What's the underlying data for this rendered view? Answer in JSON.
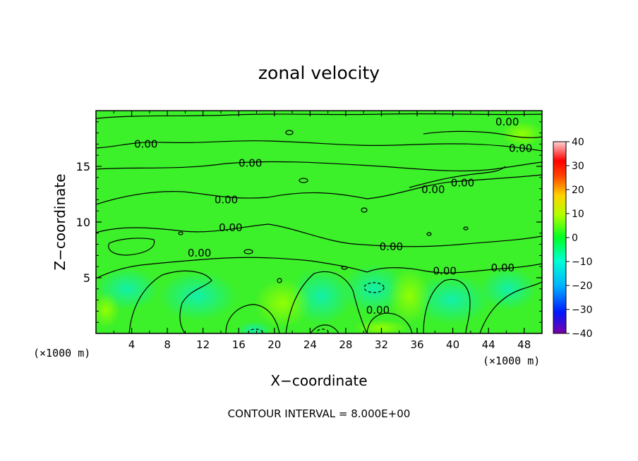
{
  "chart_data": {
    "type": "heatmap",
    "title": "zonal velocity",
    "xlabel": "X−coordinate",
    "ylabel": "Z−coordinate",
    "x_unit_left": "(×1000 m)",
    "x_unit_right": "(×1000 m)",
    "xlim": [
      0,
      50
    ],
    "ylim": [
      0,
      20
    ],
    "x_ticks": [
      4,
      8,
      12,
      16,
      20,
      24,
      28,
      32,
      36,
      40,
      44,
      48
    ],
    "x_tick_labels": [
      "4",
      "8",
      "12",
      "16",
      "20",
      "24",
      "28",
      "32",
      "36",
      "40",
      "44",
      "48"
    ],
    "y_ticks": [
      5,
      10,
      15
    ],
    "y_tick_labels": [
      "5",
      "10",
      "15"
    ],
    "colorbar": {
      "range": [
        -40,
        40
      ],
      "ticks": [
        40,
        30,
        20,
        10,
        0,
        -10,
        -20,
        -30,
        -40
      ],
      "tick_labels": [
        "40",
        "30",
        "20",
        "10",
        "0",
        "−10",
        "−20",
        "−30",
        "−40"
      ],
      "colormap": [
        "#7a00a8",
        "#0018ff",
        "#00b4ff",
        "#00ffd2",
        "#00ff24",
        "#b4ff00",
        "#ffd200",
        "#ff4600",
        "#ff0000",
        "#ffd2d2"
      ]
    },
    "contour_labels": [
      {
        "text": "0.00",
        "x": 5.6,
        "z": 17.0
      },
      {
        "text": "0.00",
        "x": 17.3,
        "z": 15.3
      },
      {
        "text": "0.00",
        "x": 14.6,
        "z": 12.0
      },
      {
        "text": "0.00",
        "x": 15.1,
        "z": 9.5
      },
      {
        "text": "0.00",
        "x": 11.6,
        "z": 7.2
      },
      {
        "text": "0.00",
        "x": 33.1,
        "z": 7.8
      },
      {
        "text": "0.00",
        "x": 31.6,
        "z": 2.1
      },
      {
        "text": "0.00",
        "x": 37.8,
        "z": 12.9
      },
      {
        "text": "0.00",
        "x": 41.1,
        "z": 13.5
      },
      {
        "text": "0.00",
        "x": 46.1,
        "z": 19.0
      },
      {
        "text": "0.00",
        "x": 47.6,
        "z": 16.6
      },
      {
        "text": "0.00",
        "x": 39.1,
        "z": 5.6
      },
      {
        "text": "0.00",
        "x": 45.6,
        "z": 5.9
      }
    ],
    "field_description_values": {
      "background_u": 0,
      "min_u": -8,
      "max_u": 8
    },
    "grid": false
  },
  "footer": {
    "contour_interval": "CONTOUR INTERVAL = 8.000E+00"
  }
}
